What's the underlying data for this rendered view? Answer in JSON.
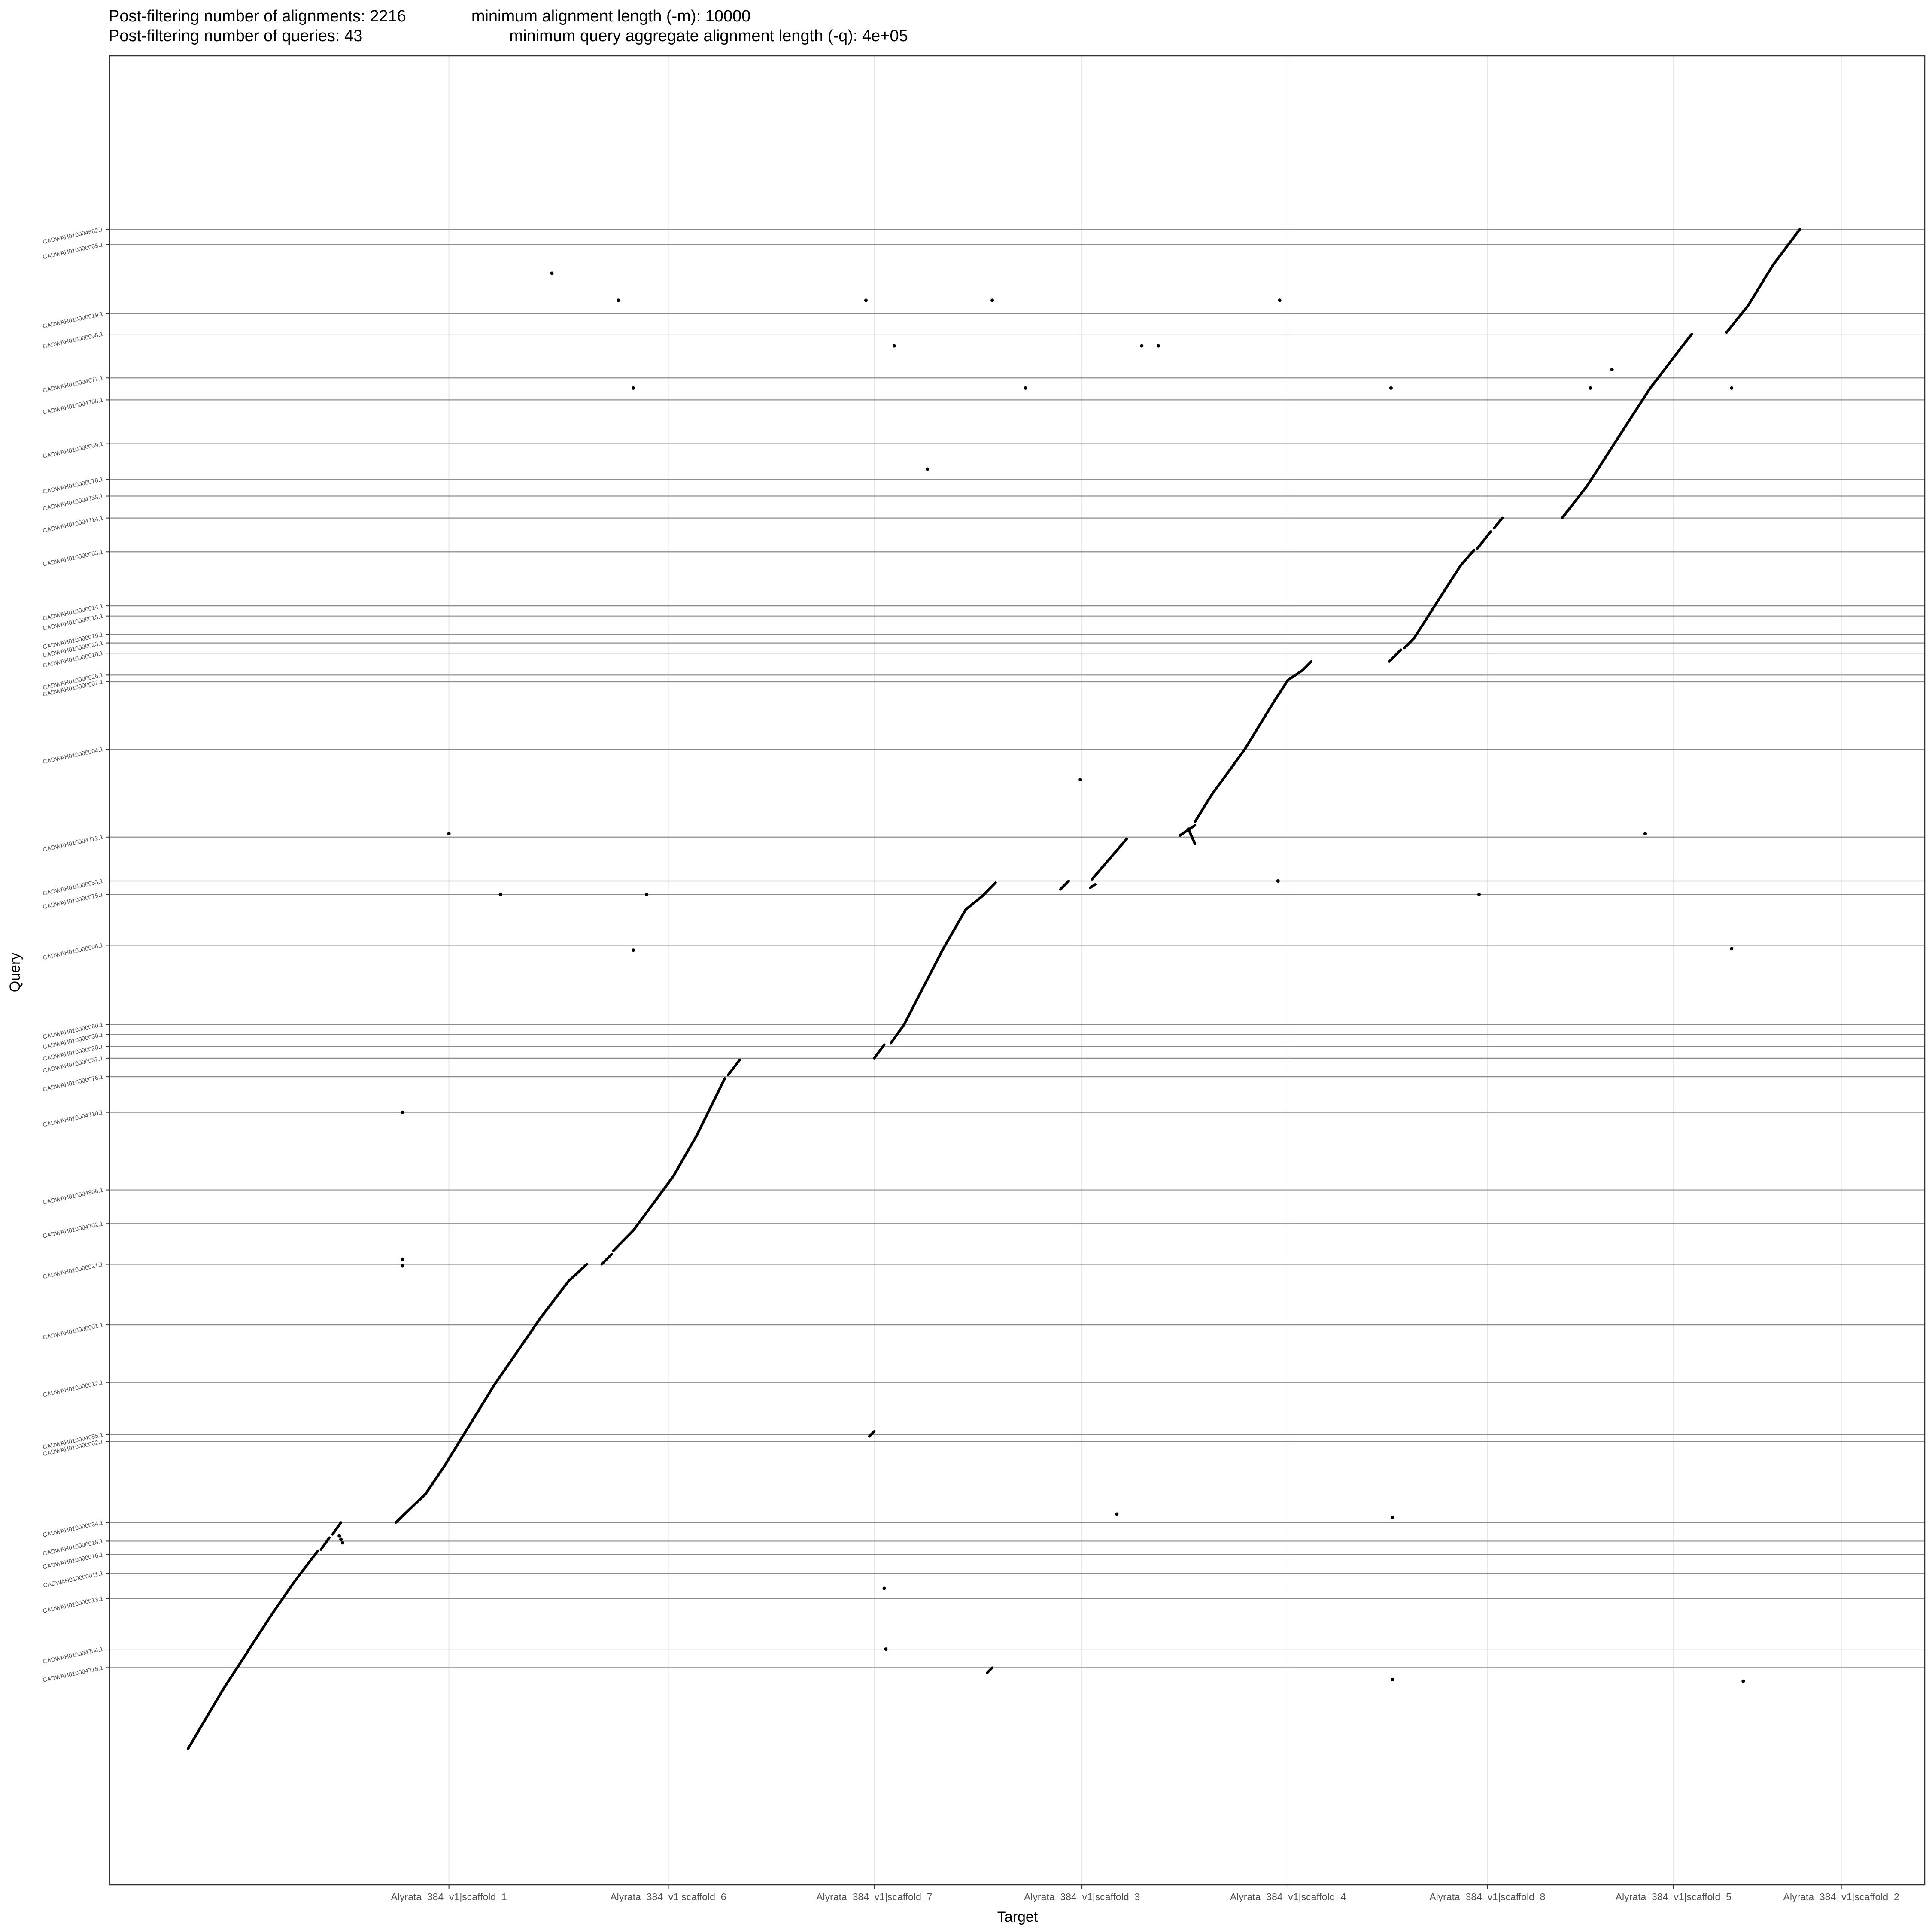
{
  "header": {
    "line1": "Post-filtering number of alignments: 2216    minimum alignment length (-m): 10000",
    "line2": "Post-filtering number of queries: 43         minimum query aggregate alignment length (-q): 4e+05"
  },
  "chart_data": {
    "type": "scatter",
    "title": "Post-filtering number of alignments: 2216 minimum alignment length (-m): 10000 / Post-filtering number of queries: 43 minimum query aggregate alignment length (-q): 4e+05",
    "xlabel": "Target",
    "ylabel": "Query",
    "grid": true,
    "legend": "none",
    "x_units": "cumulative target position (0 = start of concatenated targets, 1 = end)",
    "y_units": "cumulative query position (0 = bottom of concatenated queries, 1 = top)",
    "x_range": [
      0.0,
      1.0
    ],
    "y_range": [
      0.0,
      1.0
    ],
    "x_ticks": [
      {
        "label": "Alyrata_384_v1|scaffold_1",
        "pos": 0.203
      },
      {
        "label": "Alyrata_384_v1|scaffold_6",
        "pos": 0.335
      },
      {
        "label": "Alyrata_384_v1|scaffold_7",
        "pos": 0.459
      },
      {
        "label": "Alyrata_384_v1|scaffold_3",
        "pos": 0.584
      },
      {
        "label": "Alyrata_384_v1|scaffold_4",
        "pos": 0.708
      },
      {
        "label": "Alyrata_384_v1|scaffold_8",
        "pos": 0.828
      },
      {
        "label": "Alyrata_384_v1|scaffold_5",
        "pos": 0.94
      },
      {
        "label": "Alyrata_384_v1|scaffold_2",
        "pos": 1.041
      }
    ],
    "y_ticks": [
      {
        "label": "CADWAH010004715.1",
        "pos": 0.093
      },
      {
        "label": "CADWAH010004704.1",
        "pos": 0.104
      },
      {
        "label": "CADWAH010000013.1",
        "pos": 0.134
      },
      {
        "label": "CADWAH010000011.1",
        "pos": 0.149
      },
      {
        "label": "CADWAH010000016.1",
        "pos": 0.16
      },
      {
        "label": "CADWAH010000018.1",
        "pos": 0.168
      },
      {
        "label": "CADWAH010000034.1",
        "pos": 0.179
      },
      {
        "label": "CADWAH010000002.1",
        "pos": 0.227
      },
      {
        "label": "CADWAH010004655.1",
        "pos": 0.231
      },
      {
        "label": "CADWAH010000012.1",
        "pos": 0.262
      },
      {
        "label": "CADWAH010000001.1",
        "pos": 0.296
      },
      {
        "label": "CADWAH010000021.1",
        "pos": 0.332
      },
      {
        "label": "CADWAH010004702.1",
        "pos": 0.356
      },
      {
        "label": "CADWAH010004806.1",
        "pos": 0.376
      },
      {
        "label": "CADWAH010004710.1",
        "pos": 0.422
      },
      {
        "label": "CADWAH010000076.1",
        "pos": 0.443
      },
      {
        "label": "CADWAH010000057.1",
        "pos": 0.454
      },
      {
        "label": "CADWAH010000020.1",
        "pos": 0.461
      },
      {
        "label": "CADWAH010000030.1",
        "pos": 0.468
      },
      {
        "label": "CADWAH010000060.1",
        "pos": 0.474
      },
      {
        "label": "CADWAH010000006.1",
        "pos": 0.521
      },
      {
        "label": "CADWAH010000075.1",
        "pos": 0.551
      },
      {
        "label": "CADWAH010000053.1",
        "pos": 0.559
      },
      {
        "label": "CADWAH010004772.1",
        "pos": 0.585
      },
      {
        "label": "CADWAH010000004.1",
        "pos": 0.637
      },
      {
        "label": "CADWAH010000007.1",
        "pos": 0.677
      },
      {
        "label": "CADWAH010000026.1",
        "pos": 0.681
      },
      {
        "label": "CADWAH010000010.1",
        "pos": 0.694
      },
      {
        "label": "CADWAH010000023.1",
        "pos": 0.7
      },
      {
        "label": "CADWAH010000079.1",
        "pos": 0.705
      },
      {
        "label": "CADWAH010000015.1",
        "pos": 0.716
      },
      {
        "label": "CADWAH010000014.1",
        "pos": 0.722
      },
      {
        "label": "CADWAH010000003.1",
        "pos": 0.754
      },
      {
        "label": "CADWAH010004714.1",
        "pos": 0.774
      },
      {
        "label": "CADWAH010004758.1",
        "pos": 0.787
      },
      {
        "label": "CADWAH010000070.1",
        "pos": 0.797
      },
      {
        "label": "CADWAH010000009.1",
        "pos": 0.818
      },
      {
        "label": "CADWAH010004708.1",
        "pos": 0.844
      },
      {
        "label": "CADWAH010004677.1",
        "pos": 0.857
      },
      {
        "label": "CADWAH010000008.1",
        "pos": 0.883
      },
      {
        "label": "CADWAH010000019.1",
        "pos": 0.895
      },
      {
        "label": "CADWAH010000005.1",
        "pos": 0.936
      },
      {
        "label": "CADWAH010004682.1",
        "pos": 0.945
      }
    ],
    "segments": [
      [
        0.046,
        0.045,
        0.067,
        0.08
      ],
      [
        0.067,
        0.08,
        0.096,
        0.124
      ],
      [
        0.096,
        0.124,
        0.11,
        0.144
      ],
      [
        0.11,
        0.144,
        0.124,
        0.162
      ],
      [
        0.126,
        0.163,
        0.131,
        0.17
      ],
      [
        0.133,
        0.172,
        0.138,
        0.179
      ],
      [
        0.171,
        0.179,
        0.189,
        0.196
      ],
      [
        0.189,
        0.196,
        0.2,
        0.212
      ],
      [
        0.2,
        0.212,
        0.21,
        0.228
      ],
      [
        0.21,
        0.228,
        0.23,
        0.26
      ],
      [
        0.23,
        0.26,
        0.258,
        0.3
      ],
      [
        0.258,
        0.3,
        0.275,
        0.322
      ],
      [
        0.275,
        0.322,
        0.286,
        0.332
      ],
      [
        0.295,
        0.332,
        0.301,
        0.338
      ],
      [
        0.302,
        0.34,
        0.314,
        0.352
      ],
      [
        0.314,
        0.352,
        0.338,
        0.384
      ],
      [
        0.338,
        0.384,
        0.352,
        0.408
      ],
      [
        0.352,
        0.408,
        0.369,
        0.442
      ],
      [
        0.371,
        0.444,
        0.378,
        0.453
      ],
      [
        0.459,
        0.454,
        0.465,
        0.462
      ],
      [
        0.469,
        0.463,
        0.477,
        0.474
      ],
      [
        0.477,
        0.474,
        0.5,
        0.518
      ],
      [
        0.5,
        0.518,
        0.514,
        0.542
      ],
      [
        0.514,
        0.542,
        0.524,
        0.55
      ],
      [
        0.524,
        0.55,
        0.532,
        0.558
      ],
      [
        0.571,
        0.554,
        0.576,
        0.559
      ],
      [
        0.589,
        0.555,
        0.592,
        0.557
      ],
      [
        0.59,
        0.56,
        0.611,
        0.584
      ],
      [
        0.643,
        0.586,
        0.652,
        0.592
      ],
      [
        0.648,
        0.59,
        0.652,
        0.581
      ],
      [
        0.652,
        0.594,
        0.662,
        0.61
      ],
      [
        0.662,
        0.61,
        0.682,
        0.637
      ],
      [
        0.682,
        0.637,
        0.7,
        0.666
      ],
      [
        0.7,
        0.666,
        0.708,
        0.678
      ],
      [
        0.708,
        0.678,
        0.717,
        0.684
      ],
      [
        0.717,
        0.684,
        0.722,
        0.689
      ],
      [
        0.769,
        0.689,
        0.776,
        0.696
      ],
      [
        0.778,
        0.697,
        0.784,
        0.703
      ],
      [
        0.784,
        0.703,
        0.795,
        0.72
      ],
      [
        0.795,
        0.72,
        0.812,
        0.746
      ],
      [
        0.812,
        0.746,
        0.82,
        0.755
      ],
      [
        0.822,
        0.756,
        0.83,
        0.766
      ],
      [
        0.832,
        0.768,
        0.837,
        0.774
      ],
      [
        0.873,
        0.774,
        0.888,
        0.793
      ],
      [
        0.888,
        0.793,
        0.907,
        0.822
      ],
      [
        0.907,
        0.822,
        0.926,
        0.851
      ],
      [
        0.926,
        0.851,
        0.951,
        0.883
      ],
      [
        0.972,
        0.884,
        0.985,
        0.9
      ],
      [
        0.985,
        0.9,
        1.0,
        0.924
      ],
      [
        1.0,
        0.924,
        1.016,
        0.945
      ],
      [
        0.456,
        0.23,
        0.459,
        0.233
      ],
      [
        0.527,
        0.09,
        0.53,
        0.093
      ]
    ],
    "points": [
      [
        0.138,
        0.169
      ],
      [
        0.139,
        0.167
      ],
      [
        0.137,
        0.171
      ],
      [
        0.175,
        0.331
      ],
      [
        0.175,
        0.335
      ],
      [
        0.175,
        0.422
      ],
      [
        0.203,
        0.587
      ],
      [
        0.234,
        0.551
      ],
      [
        0.265,
        0.919
      ],
      [
        0.305,
        0.903
      ],
      [
        0.314,
        0.851
      ],
      [
        0.322,
        0.551
      ],
      [
        0.314,
        0.518
      ],
      [
        0.454,
        0.903
      ],
      [
        0.471,
        0.876
      ],
      [
        0.491,
        0.803
      ],
      [
        0.466,
        0.104
      ],
      [
        0.53,
        0.903
      ],
      [
        0.55,
        0.851
      ],
      [
        0.583,
        0.619
      ],
      [
        0.605,
        0.184
      ],
      [
        0.62,
        0.876
      ],
      [
        0.63,
        0.876
      ],
      [
        0.702,
        0.559
      ],
      [
        0.703,
        0.903
      ],
      [
        0.77,
        0.851
      ],
      [
        0.771,
        0.182
      ],
      [
        0.771,
        0.086
      ],
      [
        0.823,
        0.551
      ],
      [
        0.89,
        0.851
      ],
      [
        0.903,
        0.862
      ],
      [
        0.923,
        0.587
      ],
      [
        0.975,
        0.851
      ],
      [
        0.975,
        0.519
      ],
      [
        0.982,
        0.085
      ],
      [
        0.465,
        0.14
      ]
    ]
  }
}
